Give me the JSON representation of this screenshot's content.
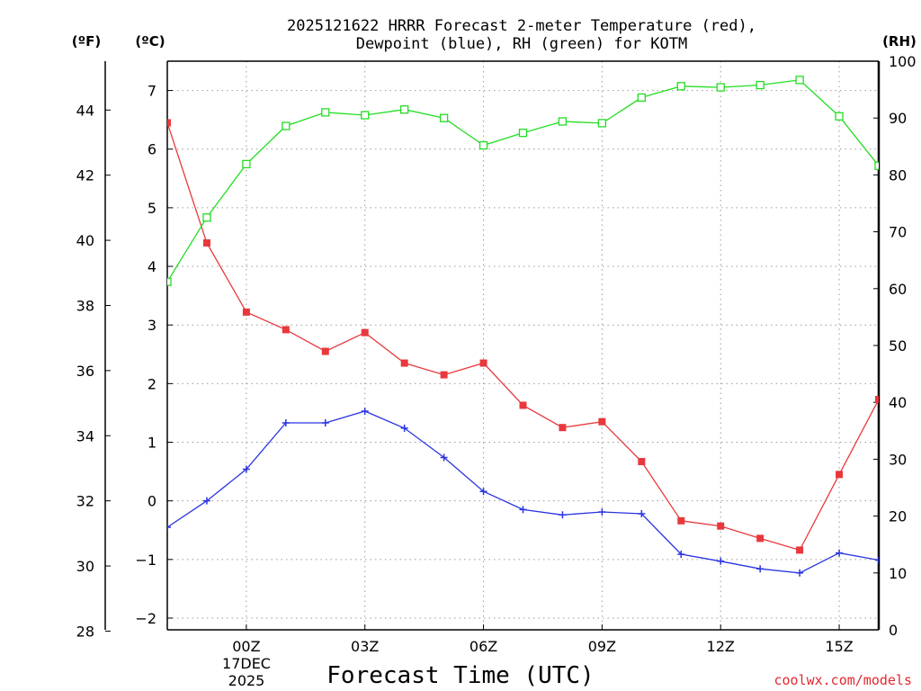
{
  "chart_data": {
    "type": "line",
    "title_line1": "2025121622 HRRR Forecast 2-meter Temperature (red),",
    "title_line2": "Dewpoint (blue), RH (green) for KOTM",
    "xlabel": "Forecast Time (UTC)",
    "credit": "coolwx.com/models",
    "units": {
      "f": "(ºF)",
      "c": "(ºC)",
      "rh": "(RH)"
    },
    "x_hours": [
      -1,
      0,
      1,
      2,
      3,
      4,
      5,
      6,
      7,
      8,
      9,
      10,
      11,
      12,
      13,
      14,
      15,
      16,
      17
    ],
    "x_tick_labels": [
      {
        "hour": 1,
        "text": "00Z"
      },
      {
        "hour": 4,
        "text": "03Z"
      },
      {
        "hour": 7,
        "text": "06Z"
      },
      {
        "hour": 10,
        "text": "09Z"
      },
      {
        "hour": 13,
        "text": "12Z"
      },
      {
        "hour": 16,
        "text": "15Z"
      }
    ],
    "date_line1": "17DEC",
    "date_line2": "2025",
    "xlim": [
      -1,
      17
    ],
    "celsius_ylim": [
      -2.2,
      7.5
    ],
    "celsius_ticks": [
      -2,
      -1,
      0,
      1,
      2,
      3,
      4,
      5,
      6,
      7
    ],
    "fahrenheit_ticks": [
      28,
      30,
      32,
      34,
      36,
      38,
      40,
      42,
      44
    ],
    "rh_ylim": [
      0,
      100
    ],
    "rh_ticks": [
      0,
      10,
      20,
      30,
      40,
      50,
      60,
      70,
      80,
      90,
      100
    ],
    "series": [
      {
        "name": "Temperature",
        "unit": "C",
        "color": "#e8383c",
        "marker": "filled-square",
        "values": [
          6.45,
          4.4,
          3.22,
          2.92,
          2.55,
          2.87,
          2.35,
          2.15,
          2.35,
          1.63,
          1.25,
          1.35,
          0.67,
          -0.34,
          -0.43,
          -0.64,
          -0.84,
          0.45,
          1.73
        ]
      },
      {
        "name": "Dewpoint",
        "unit": "C",
        "color": "#2a34e0",
        "marker": "plus",
        "values": [
          -0.45,
          0.0,
          0.54,
          1.33,
          1.33,
          1.53,
          1.24,
          0.74,
          0.16,
          -0.15,
          -0.24,
          -0.19,
          -0.22,
          -0.91,
          -1.03,
          -1.16,
          -1.23,
          -0.89,
          -1.01
        ]
      },
      {
        "name": "RH",
        "unit": "%",
        "color": "#22dd22",
        "marker": "open-square",
        "values": [
          61.2,
          72.5,
          81.9,
          88.6,
          91.0,
          90.5,
          91.5,
          90.0,
          85.2,
          87.4,
          89.4,
          89.1,
          93.6,
          95.6,
          95.4,
          95.8,
          96.7,
          90.3,
          81.6
        ]
      }
    ]
  }
}
